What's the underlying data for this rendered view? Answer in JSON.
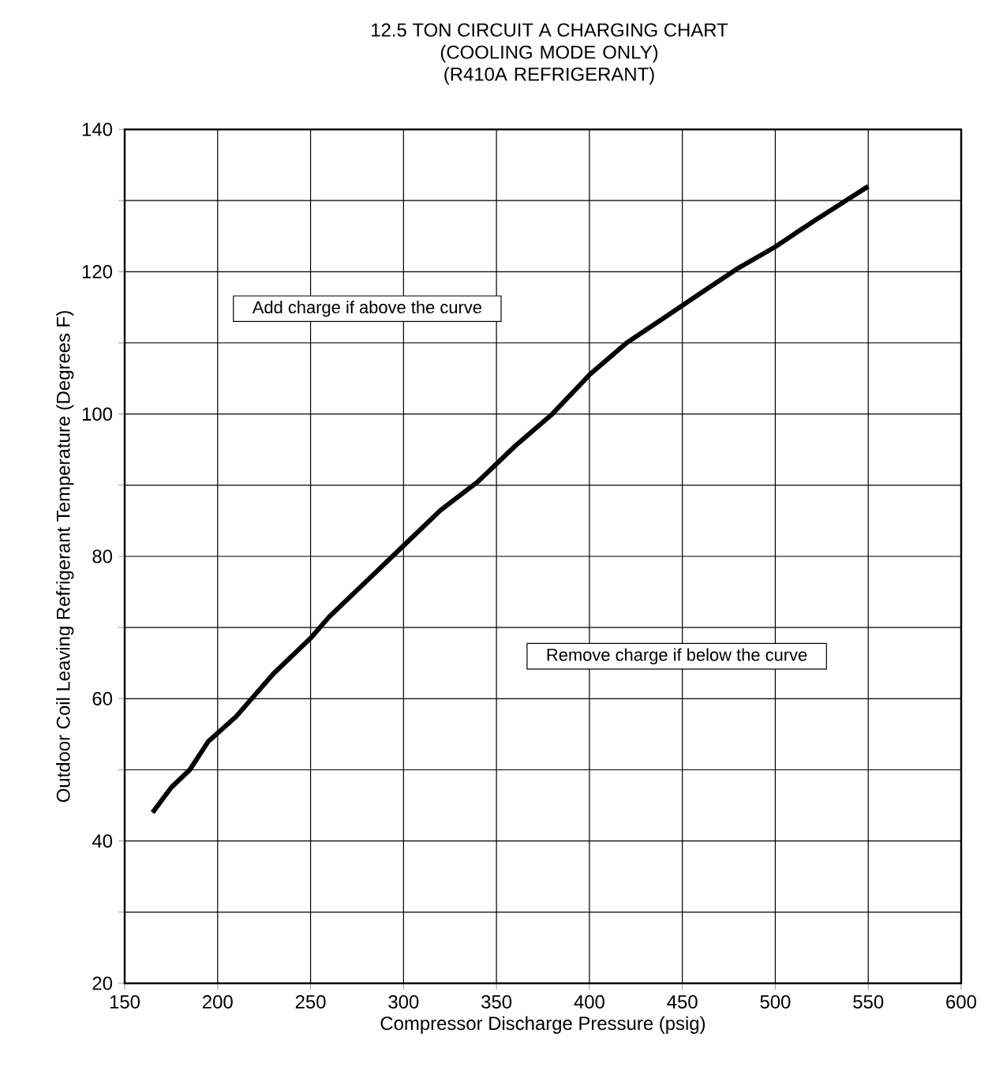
{
  "chart_data": {
    "type": "line",
    "title": "12.5 TON CIRCUIT A CHARGING CHART",
    "subtitle": "(COOLING MODE ONLY) (R410A REFRIGERANT)",
    "xlabel": "Compressor Discharge Pressure (psig)",
    "ylabel": "Outdoor Coil Leaving Refrigerant Temperature (Degrees F)",
    "annotations": [
      "Add charge if above the curve",
      "Remove charge if below the curve"
    ],
    "x": [
      165,
      175,
      185,
      195,
      210,
      220,
      230,
      250,
      260,
      280,
      300,
      320,
      340,
      360,
      380,
      400,
      420,
      440,
      460,
      480,
      500,
      520,
      535,
      550
    ],
    "series": [
      {
        "color": "#000000",
        "line_style": "solid",
        "values": [
          44,
          47.5,
          50,
          54,
          57.5,
          60.5,
          63.5,
          68.5,
          71.5,
          76.5,
          81.5,
          86.5,
          90.5,
          95.5,
          100,
          105.5,
          110,
          113.5,
          117,
          120.5,
          123.5,
          127,
          129.5,
          132
        ]
      }
    ],
    "xlim": [
      150,
      600
    ],
    "ylim": [
      20,
      140
    ],
    "xticks": [
      150,
      200,
      250,
      300,
      350,
      400,
      450,
      500,
      550,
      600
    ],
    "yticks": [
      20,
      {
        "value": 30,
        "label": null
      },
      40,
      {
        "value": 50,
        "label": null
      },
      60,
      {
        "value": 70,
        "label": null
      },
      80,
      {
        "value": 90,
        "label": null
      },
      100,
      {
        "value": 110,
        "label": null
      },
      120,
      {
        "value": 130,
        "label": null
      },
      140
    ],
    "grid": true
  }
}
